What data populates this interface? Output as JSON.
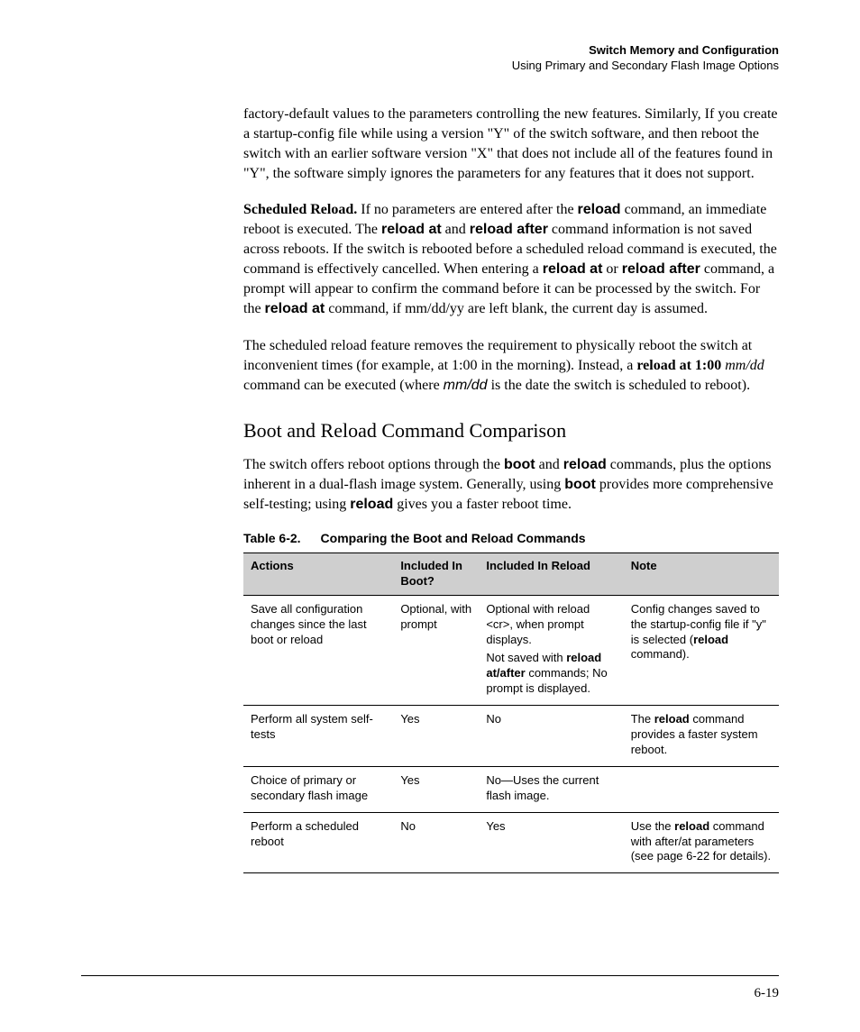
{
  "header": {
    "title": "Switch Memory and Configuration",
    "subtitle": "Using Primary and Secondary Flash Image Options"
  },
  "para1": {
    "t1": "factory-default values to the parameters controlling the new features. Similarly, If you create a startup-config file while using a version \"Y\" of the switch software, and then reboot the switch with an earlier software version \"X\" that does not include all of the features found in \"Y\", the software simply ignores the parameters for any features that it does not support."
  },
  "para2": {
    "lead": "Scheduled Reload.",
    "t1": "   If no parameters are entered after the ",
    "kw1": "reload",
    "t2": " command, an immediate reboot is executed. The ",
    "kw2": "reload at",
    "t3": " and ",
    "kw3": "reload after",
    "t4": " command information is not saved across reboots. If the switch is rebooted before a scheduled reload command is executed, the command is effectively cancelled. When entering a ",
    "kw4": "reload at",
    "t5": " or ",
    "kw5": "reload after",
    "t6": " command, a prompt will appear to confirm the command before it can be processed by the switch. For the ",
    "kw6": "reload at",
    "t7": " command, if mm/dd/yy are left blank, the current day is assumed."
  },
  "para3": {
    "t1": "The scheduled reload feature removes the requirement to physically reboot the switch at inconvenient times (for example, at 1:00 in the morning). Instead, a ",
    "kw1": "reload at 1:00",
    "sp": " ",
    "it1": "mm/dd",
    "t2": " command can be executed (where ",
    "it2": "mm/dd",
    "t3": " is the date the switch is scheduled to reboot)."
  },
  "section": {
    "title": "Boot and Reload Command Comparison"
  },
  "para4": {
    "t1": "The switch offers reboot options through the ",
    "kw1": "boot",
    "t2": " and ",
    "kw2": "reload",
    "t3": " commands, plus the options inherent in a dual-flash image system. Generally, using ",
    "kw3": "boot",
    "t4": " provides more comprehensive self-testing; using ",
    "kw4": "reload",
    "t5": " gives you a faster reboot time."
  },
  "table": {
    "caption_label": "Table 6-2.",
    "caption_title": "Comparing the Boot and Reload Commands",
    "columns": {
      "c1": "Actions",
      "c2": "Included In Boot?",
      "c3": "Included In Reload",
      "c4": "Note"
    },
    "col_widths_pct": [
      28,
      16,
      27,
      29
    ],
    "header_bg": "#cfcfcf",
    "border_color": "#000000",
    "font_size_pt": 10,
    "rows": {
      "r1": {
        "c1": "Save all configuration changes since the last boot or reload",
        "c2": "Optional, with prompt",
        "c3a": "Optional with reload <cr>, when prompt displays.",
        "c3b_pre": "Not saved with ",
        "c3b_kw": "reload at/after",
        "c3b_post": " commands; No prompt is displayed.",
        "c4_pre": "Config changes saved to the startup-config file if \"y\" is selected (",
        "c4_kw": "reload",
        "c4_post": " command)."
      },
      "r2": {
        "c1": "Perform all system self-tests",
        "c2": "Yes",
        "c3": "No",
        "c4_pre": "The ",
        "c4_kw": "reload",
        "c4_post": " command provides a faster system reboot."
      },
      "r3": {
        "c1": "Choice of primary or secondary flash image",
        "c2": "Yes",
        "c3": "No—Uses the current flash image.",
        "c4": ""
      },
      "r4": {
        "c1": "Perform a scheduled reboot",
        "c2": "No",
        "c3": "Yes",
        "c4_pre": "Use the ",
        "c4_kw": "reload",
        "c4_post": " command with after/at parameters (see page 6-22 for details)."
      }
    }
  },
  "page_number": "6-19"
}
